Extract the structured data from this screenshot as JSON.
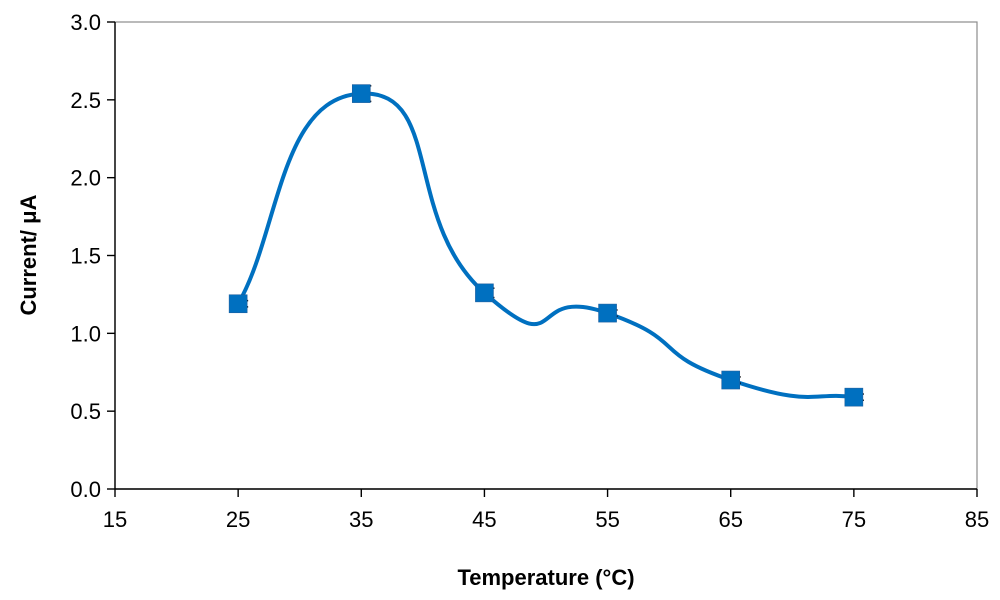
{
  "chart_data": {
    "type": "scatter",
    "title": "",
    "xlabel": "Temperature (°C)",
    "ylabel": "Current/ μA",
    "xlim": [
      15,
      85
    ],
    "ylim": [
      0,
      3.0
    ],
    "xticks": [
      15,
      25,
      35,
      45,
      55,
      65,
      75,
      85
    ],
    "yticks": [
      0.0,
      0.5,
      1.0,
      1.5,
      2.0,
      2.5,
      3.0
    ],
    "x_tick_labels": [
      "15",
      "25",
      "35",
      "45",
      "55",
      "65",
      "75",
      "85"
    ],
    "y_tick_labels": [
      "0.0",
      "0.5",
      "1.0",
      "1.5",
      "2.0",
      "2.5",
      "3.0"
    ],
    "grid": false,
    "legend": "none",
    "line_style": "smooth",
    "marker": "square",
    "series": [
      {
        "color": "#0070C0",
        "x": [
          25,
          35,
          45,
          55,
          65,
          75
        ],
        "y": [
          1.19,
          2.54,
          1.26,
          1.13,
          0.7,
          0.59
        ],
        "error": [
          0.02,
          0.05,
          0.03,
          0.02,
          0.02,
          0.02
        ]
      }
    ]
  }
}
